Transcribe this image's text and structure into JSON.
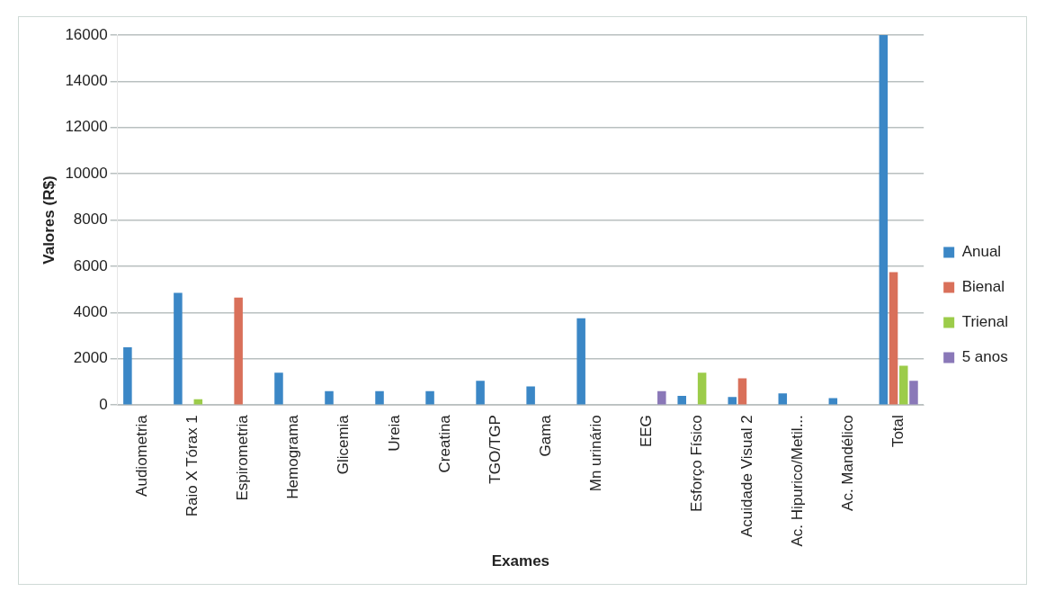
{
  "chart_data": {
    "type": "bar",
    "xlabel": "Exames",
    "ylabel": "Valores (R$)",
    "categories": [
      "Audiometria",
      "Raio X Tórax 1",
      "Espirometria",
      "Hemograma",
      "Glicemia",
      "Ureia",
      "Creatina",
      "TGO/TGP",
      "Gama",
      "Mn urinário",
      "EEG",
      "Esforço Físico",
      "Acuidade Visual 2",
      "Ac. Hipurico/Metil...",
      "Ac. Mandélico",
      "Total"
    ],
    "series": [
      {
        "name": "Anual",
        "color": "#3b87c6",
        "values": [
          2500,
          4850,
          0,
          1400,
          600,
          600,
          600,
          1050,
          800,
          3750,
          0,
          400,
          350,
          500,
          300,
          16000
        ]
      },
      {
        "name": "Bienal",
        "color": "#d9705a",
        "values": [
          0,
          0,
          4650,
          0,
          0,
          0,
          0,
          0,
          0,
          0,
          0,
          0,
          1150,
          0,
          0,
          5750
        ]
      },
      {
        "name": "Trienal",
        "color": "#9ccc4a",
        "values": [
          0,
          250,
          0,
          0,
          0,
          0,
          0,
          0,
          0,
          0,
          0,
          1400,
          0,
          0,
          0,
          1700
        ]
      },
      {
        "name": "5 anos",
        "color": "#8a78b8",
        "values": [
          0,
          0,
          0,
          0,
          0,
          0,
          0,
          0,
          0,
          0,
          600,
          0,
          0,
          0,
          0,
          1050
        ]
      }
    ],
    "ylim": [
      0,
      16000
    ],
    "yticks": [
      0,
      2000,
      4000,
      6000,
      8000,
      10000,
      12000,
      14000,
      16000
    ],
    "grid": "y",
    "legend": "right"
  }
}
